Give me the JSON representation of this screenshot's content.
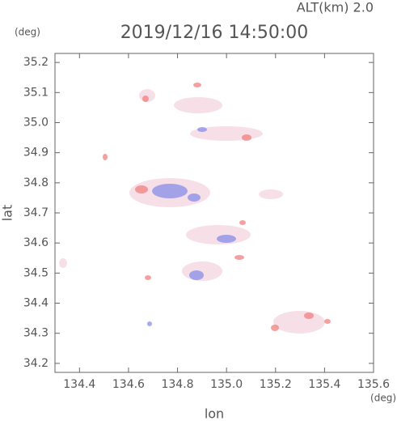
{
  "chart_data": {
    "type": "map",
    "title": "2019/12/16 14:50:00",
    "subtitle": "ALT(km) 2.0",
    "x_label": "lon",
    "x_unit": "(deg)",
    "y_label": "lat",
    "y_unit": "(deg)",
    "xlim": [
      134.3,
      135.6
    ],
    "xticks": [
      134.4,
      134.6,
      134.8,
      {
        "value": 135,
        "label": "135.0"
      },
      135.2,
      135.4,
      135.6
    ],
    "ylim": [
      34.17,
      35.23
    ],
    "yticks": [
      34.2,
      34.3,
      34.4,
      34.5,
      34.6,
      34.7,
      34.8,
      34.9,
      {
        "value": 35,
        "label": "35.0"
      },
      35.1,
      35.2
    ],
    "grid": false
  }
}
